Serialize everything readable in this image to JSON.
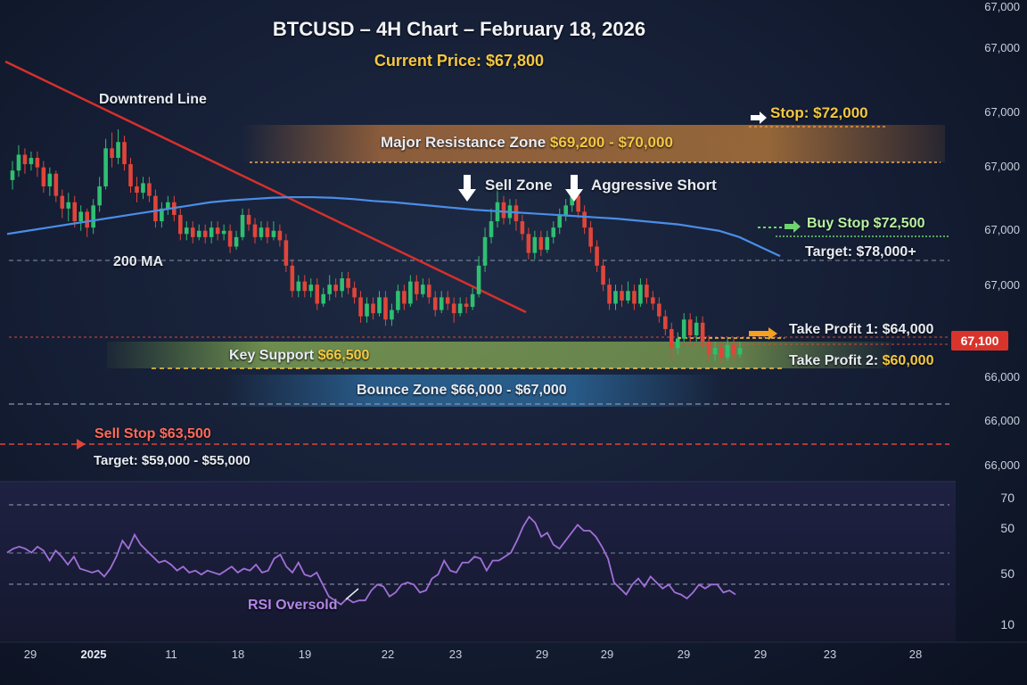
{
  "header": {
    "title": "BTCUSD – 4H Chart – February 18, 2026",
    "current_price_label": "Current Price:",
    "current_price_value": "$67,800"
  },
  "annotations": {
    "downtrend_line": "Downtrend Line",
    "ma_label": "200 MA",
    "stop": "Stop: $72,000",
    "resistance_label": "Major Resistance Zone",
    "resistance_range": "$69,200 - $70,000",
    "sell_zone": "Sell Zone",
    "aggressive_short": "Aggressive Short",
    "buy_stop": "Buy Stop $72,500",
    "buy_target": "Target: $78,000+",
    "take_profit_1": "Take Profit 1: $64,000",
    "take_profit_2_label": "Take Profit 2:",
    "take_profit_2_value": "$60,000",
    "key_support_label": "Key Support",
    "key_support_value": "$66,500",
    "bounce_zone": "Bounce Zone $66,000 - $67,000",
    "sell_stop": "Sell Stop $63,500",
    "sell_target": "Target: $59,000 - $55,000",
    "rsi_oversold": "RSI Oversold",
    "price_badge": "67,100"
  },
  "colors": {
    "bull": "#2fbf71",
    "bear": "#e0453a",
    "ma": "#4a8ee8",
    "downtrend": "#d6302b",
    "resistance": "#e88a3a",
    "support": "#a6d15a",
    "bounce": "#3aa0e8",
    "rsi": "#a070d8",
    "accent_gold": "#f5c842"
  },
  "chart_data": {
    "type": "candlestick",
    "title": "BTCUSD – 4H Chart – February 18, 2026",
    "y_tick_labels": [
      "67,000",
      "67,000",
      "67,000",
      "67,000",
      "67,000",
      "67,000",
      "66,000",
      "66,000",
      "66,000"
    ],
    "x_tick_labels": [
      "29",
      "2025",
      "11",
      "18",
      "19",
      "22",
      "23",
      "29",
      "29",
      "29",
      "29",
      "23",
      "28"
    ],
    "rsi": {
      "tick_labels": [
        "70",
        "50",
        "50",
        "10"
      ],
      "values": [
        46,
        48,
        49,
        48,
        46,
        49,
        47,
        42,
        47,
        44,
        40,
        44,
        38,
        37,
        36,
        37,
        34,
        38,
        44,
        52,
        48,
        55,
        50,
        47,
        44,
        41,
        42,
        40,
        37,
        39,
        36,
        37,
        35,
        37,
        36,
        35,
        37,
        39,
        36,
        38,
        37,
        40,
        36,
        37,
        43,
        45,
        39,
        36,
        41,
        35,
        34,
        36,
        30,
        24,
        22,
        20,
        23,
        21,
        22,
        22,
        27,
        30,
        29,
        24,
        26,
        30,
        31,
        30,
        26,
        27,
        33,
        35,
        42,
        37,
        36,
        41,
        41,
        44,
        43,
        37,
        42,
        42,
        44,
        46,
        52,
        59,
        64,
        61,
        54,
        56,
        50,
        48,
        52,
        56,
        60,
        57,
        57,
        54,
        49,
        43,
        31,
        28,
        25,
        30,
        33,
        29,
        34,
        31,
        28,
        30,
        26,
        25,
        23,
        26,
        30,
        28,
        30,
        30,
        26,
        27,
        25
      ]
    },
    "candles": [
      {
        "o": 67.95,
        "c": 68.1,
        "h": 68.25,
        "l": 67.8
      },
      {
        "o": 68.1,
        "c": 68.35,
        "h": 68.5,
        "l": 68.0
      },
      {
        "o": 68.35,
        "c": 68.2,
        "h": 68.45,
        "l": 68.05
      },
      {
        "o": 68.2,
        "c": 68.3,
        "h": 68.4,
        "l": 68.1
      },
      {
        "o": 68.3,
        "c": 68.15,
        "h": 68.4,
        "l": 68.0
      },
      {
        "o": 68.15,
        "c": 67.85,
        "h": 68.25,
        "l": 67.75
      },
      {
        "o": 67.85,
        "c": 68.05,
        "h": 68.15,
        "l": 67.7
      },
      {
        "o": 68.05,
        "c": 67.7,
        "h": 68.1,
        "l": 67.6
      },
      {
        "o": 67.7,
        "c": 67.5,
        "h": 67.8,
        "l": 67.35
      },
      {
        "o": 67.5,
        "c": 67.6,
        "h": 67.75,
        "l": 67.3
      },
      {
        "o": 67.6,
        "c": 67.3,
        "h": 67.7,
        "l": 67.2
      },
      {
        "o": 67.3,
        "c": 67.45,
        "h": 67.55,
        "l": 67.15
      },
      {
        "o": 67.45,
        "c": 67.2,
        "h": 67.5,
        "l": 67.05
      },
      {
        "o": 67.2,
        "c": 67.55,
        "h": 67.65,
        "l": 67.1
      },
      {
        "o": 67.55,
        "c": 67.85,
        "h": 68.0,
        "l": 67.45
      },
      {
        "o": 67.85,
        "c": 68.45,
        "h": 68.6,
        "l": 67.8
      },
      {
        "o": 68.45,
        "c": 68.3,
        "h": 68.7,
        "l": 68.15
      },
      {
        "o": 68.3,
        "c": 68.55,
        "h": 68.75,
        "l": 68.2
      },
      {
        "o": 68.55,
        "c": 68.2,
        "h": 68.65,
        "l": 68.1
      },
      {
        "o": 68.2,
        "c": 67.85,
        "h": 68.3,
        "l": 67.75
      },
      {
        "o": 67.85,
        "c": 67.75,
        "h": 68.0,
        "l": 67.6
      },
      {
        "o": 67.75,
        "c": 67.9,
        "h": 68.0,
        "l": 67.65
      },
      {
        "o": 67.9,
        "c": 67.7,
        "h": 68.0,
        "l": 67.6
      },
      {
        "o": 67.7,
        "c": 67.3,
        "h": 67.8,
        "l": 67.2
      },
      {
        "o": 67.3,
        "c": 67.5,
        "h": 67.6,
        "l": 67.2
      },
      {
        "o": 67.5,
        "c": 67.6,
        "h": 67.7,
        "l": 67.4
      },
      {
        "o": 67.6,
        "c": 67.4,
        "h": 67.7,
        "l": 67.3
      },
      {
        "o": 67.4,
        "c": 67.1,
        "h": 67.5,
        "l": 67.0
      },
      {
        "o": 67.1,
        "c": 67.2,
        "h": 67.3,
        "l": 67.0
      },
      {
        "o": 67.2,
        "c": 67.05,
        "h": 67.3,
        "l": 66.95
      },
      {
        "o": 67.05,
        "c": 67.15,
        "h": 67.25,
        "l": 67.0
      },
      {
        "o": 67.15,
        "c": 67.05,
        "h": 67.25,
        "l": 66.95
      },
      {
        "o": 67.05,
        "c": 67.2,
        "h": 67.3,
        "l": 66.95
      },
      {
        "o": 67.2,
        "c": 67.1,
        "h": 67.3,
        "l": 67.0
      },
      {
        "o": 67.1,
        "c": 67.15,
        "h": 67.25,
        "l": 67.0
      },
      {
        "o": 67.15,
        "c": 66.9,
        "h": 67.25,
        "l": 66.8
      },
      {
        "o": 66.9,
        "c": 67.05,
        "h": 67.15,
        "l": 66.85
      },
      {
        "o": 67.05,
        "c": 67.4,
        "h": 67.5,
        "l": 67.0
      },
      {
        "o": 67.4,
        "c": 67.25,
        "h": 67.5,
        "l": 67.15
      },
      {
        "o": 67.25,
        "c": 67.05,
        "h": 67.35,
        "l": 66.95
      },
      {
        "o": 67.05,
        "c": 67.2,
        "h": 67.3,
        "l": 67.0
      },
      {
        "o": 67.2,
        "c": 67.05,
        "h": 67.3,
        "l": 66.95
      },
      {
        "o": 67.05,
        "c": 67.15,
        "h": 67.3,
        "l": 67.0
      },
      {
        "o": 67.15,
        "c": 67.0,
        "h": 67.25,
        "l": 66.9
      },
      {
        "o": 67.0,
        "c": 66.6,
        "h": 67.1,
        "l": 66.5
      },
      {
        "o": 66.6,
        "c": 66.2,
        "h": 66.7,
        "l": 66.1
      },
      {
        "o": 66.2,
        "c": 66.35,
        "h": 66.45,
        "l": 66.1
      },
      {
        "o": 66.35,
        "c": 66.2,
        "h": 66.45,
        "l": 66.1
      },
      {
        "o": 66.2,
        "c": 66.3,
        "h": 66.4,
        "l": 66.1
      },
      {
        "o": 66.3,
        "c": 66.0,
        "h": 66.4,
        "l": 65.9
      },
      {
        "o": 66.0,
        "c": 66.15,
        "h": 66.25,
        "l": 65.95
      },
      {
        "o": 66.15,
        "c": 66.3,
        "h": 66.45,
        "l": 66.05
      },
      {
        "o": 66.3,
        "c": 66.2,
        "h": 66.4,
        "l": 66.1
      },
      {
        "o": 66.2,
        "c": 66.4,
        "h": 66.5,
        "l": 66.1
      },
      {
        "o": 66.4,
        "c": 66.25,
        "h": 66.5,
        "l": 66.15
      },
      {
        "o": 66.25,
        "c": 66.1,
        "h": 66.35,
        "l": 66.0
      },
      {
        "o": 66.1,
        "c": 65.8,
        "h": 66.2,
        "l": 65.7
      },
      {
        "o": 65.8,
        "c": 66.0,
        "h": 66.1,
        "l": 65.7
      },
      {
        "o": 66.0,
        "c": 65.85,
        "h": 66.1,
        "l": 65.75
      },
      {
        "o": 65.85,
        "c": 66.1,
        "h": 66.2,
        "l": 65.8
      },
      {
        "o": 66.1,
        "c": 65.75,
        "h": 66.2,
        "l": 65.65
      },
      {
        "o": 65.75,
        "c": 65.9,
        "h": 66.0,
        "l": 65.65
      },
      {
        "o": 65.9,
        "c": 66.2,
        "h": 66.3,
        "l": 65.85
      },
      {
        "o": 66.2,
        "c": 66.0,
        "h": 66.3,
        "l": 65.9
      },
      {
        "o": 66.0,
        "c": 66.35,
        "h": 66.45,
        "l": 65.95
      },
      {
        "o": 66.35,
        "c": 66.15,
        "h": 66.45,
        "l": 66.05
      },
      {
        "o": 66.15,
        "c": 66.3,
        "h": 66.4,
        "l": 66.1
      },
      {
        "o": 66.3,
        "c": 66.1,
        "h": 66.4,
        "l": 66.0
      },
      {
        "o": 66.1,
        "c": 65.9,
        "h": 66.2,
        "l": 65.8
      },
      {
        "o": 65.9,
        "c": 66.1,
        "h": 66.2,
        "l": 65.85
      },
      {
        "o": 66.1,
        "c": 66.0,
        "h": 66.2,
        "l": 65.9
      },
      {
        "o": 66.0,
        "c": 65.85,
        "h": 66.1,
        "l": 65.7
      },
      {
        "o": 65.85,
        "c": 66.0,
        "h": 66.1,
        "l": 65.8
      },
      {
        "o": 66.0,
        "c": 65.95,
        "h": 66.1,
        "l": 65.85
      },
      {
        "o": 65.95,
        "c": 66.15,
        "h": 66.25,
        "l": 65.9
      },
      {
        "o": 66.15,
        "c": 66.6,
        "h": 66.75,
        "l": 66.1
      },
      {
        "o": 66.6,
        "c": 67.05,
        "h": 67.2,
        "l": 66.5
      },
      {
        "o": 67.05,
        "c": 67.3,
        "h": 67.5,
        "l": 66.95
      },
      {
        "o": 67.3,
        "c": 67.6,
        "h": 67.9,
        "l": 67.2
      },
      {
        "o": 67.6,
        "c": 67.35,
        "h": 67.7,
        "l": 67.25
      },
      {
        "o": 67.35,
        "c": 67.55,
        "h": 67.65,
        "l": 67.25
      },
      {
        "o": 67.55,
        "c": 67.3,
        "h": 67.65,
        "l": 67.15
      },
      {
        "o": 67.3,
        "c": 67.1,
        "h": 67.4,
        "l": 67.0
      },
      {
        "o": 67.1,
        "c": 66.8,
        "h": 67.2,
        "l": 66.7
      },
      {
        "o": 66.8,
        "c": 67.05,
        "h": 67.15,
        "l": 66.7
      },
      {
        "o": 67.05,
        "c": 66.85,
        "h": 67.15,
        "l": 66.75
      },
      {
        "o": 66.85,
        "c": 67.05,
        "h": 67.15,
        "l": 66.8
      },
      {
        "o": 67.05,
        "c": 67.2,
        "h": 67.3,
        "l": 66.95
      },
      {
        "o": 67.2,
        "c": 67.4,
        "h": 67.5,
        "l": 67.1
      },
      {
        "o": 67.4,
        "c": 67.55,
        "h": 67.65,
        "l": 67.3
      },
      {
        "o": 67.55,
        "c": 67.7,
        "h": 67.8,
        "l": 67.45
      },
      {
        "o": 67.7,
        "c": 67.45,
        "h": 67.8,
        "l": 67.35
      },
      {
        "o": 67.45,
        "c": 67.2,
        "h": 67.55,
        "l": 67.1
      },
      {
        "o": 67.2,
        "c": 66.9,
        "h": 67.3,
        "l": 66.8
      },
      {
        "o": 66.9,
        "c": 66.6,
        "h": 67.0,
        "l": 66.5
      },
      {
        "o": 66.6,
        "c": 66.3,
        "h": 66.7,
        "l": 66.2
      },
      {
        "o": 66.3,
        "c": 66.0,
        "h": 66.4,
        "l": 65.9
      },
      {
        "o": 66.0,
        "c": 66.2,
        "h": 66.3,
        "l": 65.9
      },
      {
        "o": 66.2,
        "c": 66.05,
        "h": 66.3,
        "l": 65.95
      },
      {
        "o": 66.05,
        "c": 66.2,
        "h": 66.35,
        "l": 66.0
      },
      {
        "o": 66.2,
        "c": 66.0,
        "h": 66.3,
        "l": 65.9
      },
      {
        "o": 66.0,
        "c": 66.3,
        "h": 66.4,
        "l": 65.95
      },
      {
        "o": 66.3,
        "c": 66.1,
        "h": 66.4,
        "l": 66.0
      },
      {
        "o": 66.1,
        "c": 66.0,
        "h": 66.2,
        "l": 65.9
      },
      {
        "o": 66.0,
        "c": 65.8,
        "h": 66.1,
        "l": 65.7
      },
      {
        "o": 65.8,
        "c": 65.6,
        "h": 65.9,
        "l": 65.5
      },
      {
        "o": 65.6,
        "c": 65.3,
        "h": 65.7,
        "l": 65.1
      },
      {
        "o": 65.3,
        "c": 65.45,
        "h": 65.55,
        "l": 65.2
      },
      {
        "o": 65.45,
        "c": 65.75,
        "h": 65.85,
        "l": 65.4
      },
      {
        "o": 65.75,
        "c": 65.5,
        "h": 65.85,
        "l": 65.4
      },
      {
        "o": 65.5,
        "c": 65.7,
        "h": 65.8,
        "l": 65.4
      },
      {
        "o": 65.7,
        "c": 65.4,
        "h": 65.8,
        "l": 65.3
      },
      {
        "o": 65.4,
        "c": 65.2,
        "h": 65.5,
        "l": 65.1
      },
      {
        "o": 65.2,
        "c": 65.3,
        "h": 65.4,
        "l": 65.1
      },
      {
        "o": 65.3,
        "c": 65.15,
        "h": 65.4,
        "l": 65.05
      },
      {
        "o": 65.15,
        "c": 65.35,
        "h": 65.45,
        "l": 65.1
      },
      {
        "o": 65.35,
        "c": 65.2,
        "h": 65.45,
        "l": 65.1
      },
      {
        "o": 65.2,
        "c": 65.3,
        "h": 65.4,
        "l": 65.15
      }
    ],
    "ma_200": [
      67.1,
      67.15,
      67.2,
      67.25,
      67.3,
      67.35,
      67.4,
      67.45,
      67.5,
      67.55,
      67.6,
      67.63,
      67.65,
      67.67,
      67.68,
      67.68,
      67.67,
      67.65,
      67.62,
      67.6,
      67.57,
      67.54,
      67.51,
      67.48,
      67.46,
      67.44,
      67.42,
      67.4,
      67.38,
      67.36,
      67.34,
      67.31,
      67.28,
      67.25,
      67.2,
      67.15,
      67.05,
      66.9,
      66.75
    ],
    "levels": {
      "stop": 72000,
      "resistance_zone": [
        69200,
        70000
      ],
      "buy_stop": 72500,
      "buy_target": 78000,
      "current_price": 67800,
      "take_profit_1": 64000,
      "take_profit_2": 60000,
      "key_support": 66500,
      "bounce_zone": [
        66000,
        67000
      ],
      "sell_stop": 63500,
      "sell_target": [
        59000,
        55000
      ]
    },
    "grid": false
  }
}
